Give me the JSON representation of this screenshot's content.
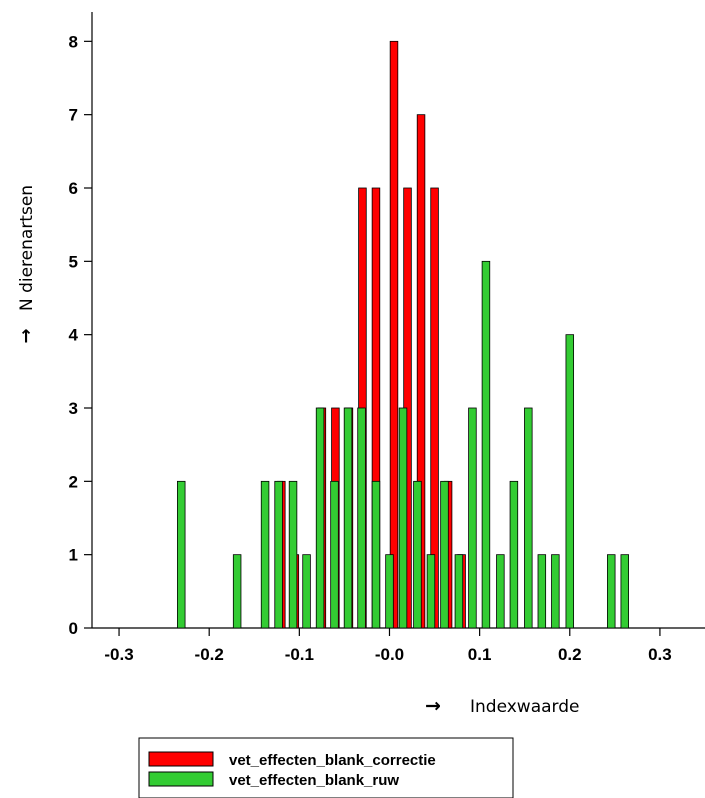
{
  "chart_data": {
    "type": "bar",
    "title": "",
    "xlabel": "Indexwaarde",
    "ylabel": "N dierenartsen",
    "x_arrow": "→",
    "y_arrow": "↑",
    "xlim": [
      -0.33,
      0.35
    ],
    "ylim": [
      0,
      8.4
    ],
    "x_ticks": [
      -0.3,
      -0.2,
      -0.1,
      0.0,
      0.1,
      0.2,
      0.3
    ],
    "x_tick_labels": [
      "-0.3",
      "-0.2",
      "-0.1",
      "-0.0",
      "0.1",
      "0.2",
      "0.3"
    ],
    "y_ticks": [
      0,
      1,
      2,
      3,
      4,
      5,
      6,
      7,
      8
    ],
    "y_tick_labels": [
      "0",
      "1",
      "2",
      "3",
      "4",
      "5",
      "6",
      "7",
      "8"
    ],
    "bar_width": 0.0085,
    "grid": false,
    "legend_position": "bottom-left",
    "series": [
      {
        "name": "vet_effecten_blank_correctie",
        "color": "#ff0000",
        "points": [
          {
            "x": -0.12,
            "y": 2
          },
          {
            "x": -0.105,
            "y": 1
          },
          {
            "x": -0.075,
            "y": 3
          },
          {
            "x": -0.06,
            "y": 3
          },
          {
            "x": -0.045,
            "y": 3
          },
          {
            "x": -0.03,
            "y": 6
          },
          {
            "x": -0.015,
            "y": 6
          },
          {
            "x": 0.005,
            "y": 8
          },
          {
            "x": 0.02,
            "y": 6
          },
          {
            "x": 0.035,
            "y": 7
          },
          {
            "x": 0.05,
            "y": 6
          },
          {
            "x": 0.065,
            "y": 2
          },
          {
            "x": 0.08,
            "y": 1
          }
        ]
      },
      {
        "name": "vet_effecten_blank_ruw",
        "color": "#33cc33",
        "points": [
          {
            "x": -0.231,
            "y": 2
          },
          {
            "x": -0.169,
            "y": 1
          },
          {
            "x": -0.138,
            "y": 2
          },
          {
            "x": -0.123,
            "y": 2
          },
          {
            "x": -0.107,
            "y": 2
          },
          {
            "x": -0.092,
            "y": 1
          },
          {
            "x": -0.077,
            "y": 3
          },
          {
            "x": -0.061,
            "y": 2
          },
          {
            "x": -0.046,
            "y": 3
          },
          {
            "x": -0.031,
            "y": 3
          },
          {
            "x": -0.015,
            "y": 2
          },
          {
            "x": 0.0,
            "y": 1
          },
          {
            "x": 0.015,
            "y": 3
          },
          {
            "x": 0.031,
            "y": 2
          },
          {
            "x": 0.046,
            "y": 1
          },
          {
            "x": 0.061,
            "y": 2
          },
          {
            "x": 0.077,
            "y": 1
          },
          {
            "x": 0.092,
            "y": 3
          },
          {
            "x": 0.107,
            "y": 5
          },
          {
            "x": 0.123,
            "y": 1
          },
          {
            "x": 0.138,
            "y": 2
          },
          {
            "x": 0.154,
            "y": 3
          },
          {
            "x": 0.169,
            "y": 1
          },
          {
            "x": 0.184,
            "y": 1
          },
          {
            "x": 0.2,
            "y": 4
          },
          {
            "x": 0.246,
            "y": 1
          },
          {
            "x": 0.261,
            "y": 1
          }
        ]
      }
    ]
  }
}
